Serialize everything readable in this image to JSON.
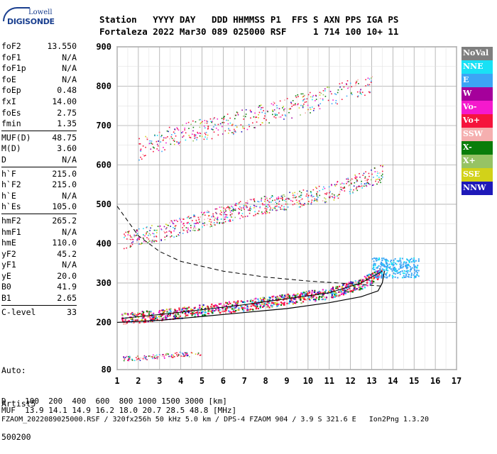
{
  "logo": {
    "line1": "Lowell",
    "line2": "DIGISONDE"
  },
  "header": {
    "line1": "Station   YYYY DAY   DDD HHMMSS P1  FFS S AXN PPS IGA PS",
    "line2": "Fortaleza 2022 Mar30 089 025000 RSF     1 714 100 10+ 11"
  },
  "params": [
    {
      "k": "foF2",
      "v": "13.550"
    },
    {
      "k": "foF1",
      "v": "N/A"
    },
    {
      "k": "foF1p",
      "v": "N/A"
    },
    {
      "k": "foE",
      "v": "N/A"
    },
    {
      "k": "foEp",
      "v": "0.48"
    },
    {
      "k": "fxI",
      "v": "14.00"
    },
    {
      "k": "foEs",
      "v": "2.75"
    },
    {
      "k": "fmin",
      "v": "1.35"
    },
    {
      "k": "MUF(D)",
      "v": "48.75"
    },
    {
      "k": "M(D)",
      "v": "3.60"
    },
    {
      "k": "D",
      "v": "N/A"
    },
    {
      "k": "h`F",
      "v": "215.0"
    },
    {
      "k": "h`F2",
      "v": "215.0"
    },
    {
      "k": "h`E",
      "v": "N/A"
    },
    {
      "k": "h`Es",
      "v": "105.0"
    },
    {
      "k": "hmF2",
      "v": "265.2"
    },
    {
      "k": "hmF1",
      "v": "N/A"
    },
    {
      "k": "hmE",
      "v": "110.0"
    },
    {
      "k": "yF2",
      "v": "45.2"
    },
    {
      "k": "yF1",
      "v": "N/A"
    },
    {
      "k": "yE",
      "v": "20.0"
    },
    {
      "k": "B0",
      "v": "41.9"
    },
    {
      "k": "B1",
      "v": "2.65"
    },
    {
      "k": "C-level",
      "v": "33"
    }
  ],
  "auto": {
    "line1": "Auto:",
    "line2": "Artist5",
    "line3": "500200"
  },
  "legend": [
    {
      "label": "NoVal",
      "color": "#7f7f7f"
    },
    {
      "label": "NNE",
      "color": "#19e1f5"
    },
    {
      "label": "E",
      "color": "#3ca5f5"
    },
    {
      "label": "W",
      "color": "#a5009b"
    },
    {
      "label": "Vo-",
      "color": "#f519cd"
    },
    {
      "label": "Vo+",
      "color": "#f5143c"
    },
    {
      "label": "SSW",
      "color": "#f5afaf"
    },
    {
      "label": "X-",
      "color": "#0a7d0a"
    },
    {
      "label": "X+",
      "color": "#96c364"
    },
    {
      "label": "SSE",
      "color": "#d2d219"
    },
    {
      "label": "NNW",
      "color": "#1e19b9"
    }
  ],
  "bottom": {
    "line1": "D    100  200  400  600  800 1000 1500 3000 [km]",
    "line2": "MUF  13.9 14.1 14.9 16.2 18.0 20.7 28.5 48.8 [MHz]",
    "line3": "FZAOM_2022089025000.RSF / 320fx256h 50 kHz 5.0 km / DPS-4 FZAOM 904 / 3.9 S 321.6 E   Ion2Png 1.3.20"
  },
  "chart_data": {
    "type": "scatter",
    "xlabel": "",
    "ylabel": "",
    "xlim": [
      1,
      17
    ],
    "ylim": [
      80,
      900
    ],
    "xticks": [
      1,
      2,
      3,
      4,
      5,
      6,
      7,
      8,
      9,
      10,
      11,
      12,
      13,
      14,
      15,
      16,
      17
    ],
    "yticks": [
      80,
      200,
      300,
      400,
      500,
      600,
      700,
      800,
      900
    ],
    "traces": [
      {
        "name": "F2 trace (1st hop)",
        "x": [
          1.2,
          3,
          5,
          7,
          9,
          11,
          12.5,
          13.5
        ],
        "y": [
          210,
          220,
          232,
          245,
          260,
          275,
          300,
          330
        ]
      },
      {
        "name": "F2 trace (2nd hop)",
        "x": [
          1.3,
          3,
          5,
          7,
          9,
          11,
          12.5,
          13.5
        ],
        "y": [
          410,
          430,
          460,
          490,
          510,
          530,
          560,
          580
        ]
      },
      {
        "name": "F2 trace (3rd hop)",
        "x": [
          2,
          4,
          6,
          8,
          10,
          12,
          13
        ],
        "y": [
          640,
          680,
          700,
          730,
          760,
          790,
          810
        ]
      },
      {
        "name": "Es trace",
        "x": [
          1.2,
          2,
          3,
          4,
          5
        ],
        "y": [
          110,
          110,
          115,
          120,
          120
        ]
      }
    ],
    "profile_dashed": {
      "x": [
        1,
        2,
        3,
        4,
        6,
        8,
        10,
        12,
        13.5
      ],
      "y": [
        495,
        420,
        380,
        355,
        330,
        315,
        305,
        298,
        292
      ]
    },
    "profile_solid": {
      "x": [
        1,
        3,
        5,
        7,
        9,
        11,
        12.5,
        13.3,
        13.5,
        13.6
      ],
      "y": [
        200,
        205,
        215,
        225,
        235,
        250,
        265,
        280,
        300,
        330
      ]
    }
  }
}
